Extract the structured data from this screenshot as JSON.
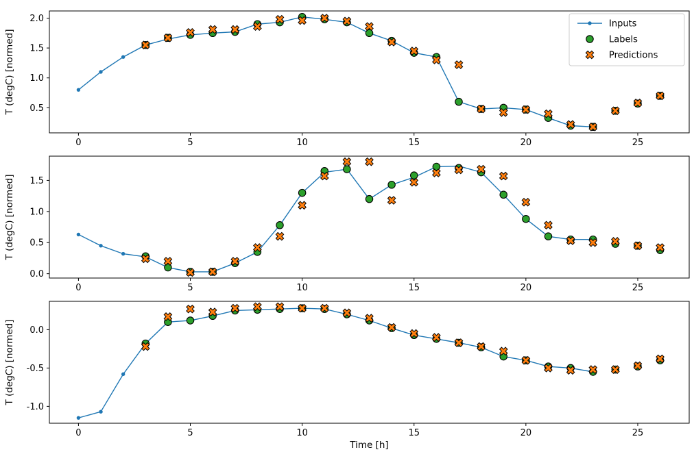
{
  "figure": {
    "xlabel": "Time [h]",
    "x_ticks": [
      0,
      5,
      10,
      15,
      20,
      25
    ],
    "x_tick_labels": [
      "0",
      "5",
      "10",
      "15",
      "20",
      "25"
    ],
    "colors": {
      "inputs": "#1f77b4",
      "labels": "#2ca02c",
      "predictions": "#ff7f0e",
      "marker_edge": "#000000",
      "frame": "#000000",
      "legend_border": "#cccccc"
    },
    "legend": {
      "position": "upper right",
      "items": [
        {
          "label": "Inputs",
          "marker": "dot-line",
          "color": "#1f77b4"
        },
        {
          "label": "Labels",
          "marker": "circle",
          "color": "#2ca02c"
        },
        {
          "label": "Predictions",
          "marker": "X",
          "color": "#ff7f0e"
        }
      ]
    }
  },
  "chart_data": [
    {
      "type": "line",
      "title": "",
      "xlabel": "",
      "ylabel": "T (degC) [normed]",
      "grid": false,
      "xlim": [
        -1.3,
        27.3
      ],
      "ylim": [
        0.08,
        2.12
      ],
      "y_ticks": [
        0.5,
        1.0,
        1.5,
        2.0
      ],
      "y_tick_labels": [
        "0.5",
        "1.0",
        "1.5",
        "2.0"
      ],
      "series": [
        {
          "name": "Inputs",
          "marker": "dot-line",
          "color": "#1f77b4",
          "x": [
            0,
            1,
            2,
            3,
            4,
            5,
            6,
            7,
            8,
            9,
            10,
            11,
            12,
            13,
            14,
            15,
            16,
            17,
            18,
            19,
            20,
            21,
            22,
            23
          ],
          "y": [
            0.8,
            1.1,
            1.35,
            1.55,
            1.65,
            1.72,
            1.75,
            1.77,
            1.9,
            1.93,
            2.02,
            1.98,
            1.93,
            1.75,
            1.62,
            1.42,
            1.35,
            0.6,
            0.48,
            0.5,
            0.47,
            0.33,
            0.2,
            0.18
          ]
        },
        {
          "name": "Labels",
          "marker": "circle",
          "color": "#2ca02c",
          "x": [
            3,
            4,
            5,
            6,
            7,
            8,
            9,
            10,
            11,
            12,
            13,
            14,
            15,
            16,
            17,
            18,
            19,
            20,
            21,
            22,
            23,
            24,
            25,
            26
          ],
          "y": [
            1.55,
            1.67,
            1.72,
            1.75,
            1.77,
            1.9,
            1.93,
            2.02,
            1.98,
            1.93,
            1.75,
            1.62,
            1.42,
            1.35,
            0.6,
            0.48,
            0.5,
            0.47,
            0.33,
            0.2,
            0.18,
            0.45,
            0.57,
            0.7
          ]
        },
        {
          "name": "Predictions",
          "marker": "X",
          "color": "#ff7f0e",
          "x": [
            3,
            4,
            5,
            6,
            7,
            8,
            9,
            10,
            11,
            12,
            13,
            14,
            15,
            16,
            17,
            18,
            19,
            20,
            21,
            22,
            23,
            24,
            25,
            26
          ],
          "y": [
            1.55,
            1.67,
            1.76,
            1.81,
            1.81,
            1.86,
            1.98,
            1.96,
            2.0,
            1.95,
            1.86,
            1.6,
            1.45,
            1.3,
            1.22,
            0.48,
            0.42,
            0.47,
            0.4,
            0.22,
            0.18,
            0.45,
            0.58,
            0.7
          ]
        }
      ]
    },
    {
      "type": "line",
      "title": "",
      "xlabel": "",
      "ylabel": "T (degC) [normed]",
      "grid": false,
      "xlim": [
        -1.3,
        27.3
      ],
      "ylim": [
        -0.07,
        1.89
      ],
      "y_ticks": [
        0.0,
        0.5,
        1.0,
        1.5
      ],
      "y_tick_labels": [
        "0.0",
        "0.5",
        "1.0",
        "1.5"
      ],
      "series": [
        {
          "name": "Inputs",
          "marker": "dot-line",
          "color": "#1f77b4",
          "x": [
            0,
            1,
            2,
            3,
            4,
            5,
            6,
            7,
            8,
            9,
            10,
            11,
            12,
            13,
            14,
            15,
            16,
            17,
            18,
            19,
            20,
            21,
            22,
            23
          ],
          "y": [
            0.63,
            0.45,
            0.32,
            0.27,
            0.1,
            0.03,
            0.03,
            0.17,
            0.35,
            0.78,
            1.3,
            1.63,
            1.68,
            1.2,
            1.43,
            1.55,
            1.72,
            1.73,
            1.63,
            1.27,
            0.88,
            0.6,
            0.55,
            0.55
          ]
        },
        {
          "name": "Labels",
          "marker": "circle",
          "color": "#2ca02c",
          "x": [
            3,
            4,
            5,
            6,
            7,
            8,
            9,
            10,
            11,
            12,
            13,
            14,
            15,
            16,
            17,
            18,
            19,
            20,
            21,
            22,
            23,
            24,
            25,
            26
          ],
          "y": [
            0.28,
            0.1,
            0.03,
            0.03,
            0.17,
            0.35,
            0.78,
            1.3,
            1.65,
            1.68,
            1.2,
            1.43,
            1.58,
            1.72,
            1.7,
            1.63,
            1.27,
            0.88,
            0.6,
            0.55,
            0.55,
            0.48,
            0.45,
            0.38
          ]
        },
        {
          "name": "Predictions",
          "marker": "X",
          "color": "#ff7f0e",
          "x": [
            3,
            4,
            5,
            6,
            7,
            8,
            9,
            10,
            11,
            12,
            13,
            14,
            15,
            16,
            17,
            18,
            19,
            20,
            21,
            22,
            23,
            24,
            25,
            26
          ],
          "y": [
            0.24,
            0.2,
            0.02,
            0.03,
            0.2,
            0.42,
            0.6,
            1.1,
            1.57,
            1.8,
            1.8,
            1.18,
            1.47,
            1.62,
            1.67,
            1.68,
            1.57,
            1.15,
            0.78,
            0.53,
            0.5,
            0.52,
            0.45,
            0.42
          ]
        }
      ]
    },
    {
      "type": "line",
      "title": "",
      "xlabel": "Time [h]",
      "ylabel": "T (degC) [normed]",
      "grid": false,
      "xlim": [
        -1.3,
        27.3
      ],
      "ylim": [
        -1.22,
        0.37
      ],
      "y_ticks": [
        -1.0,
        -0.5,
        0.0
      ],
      "y_tick_labels": [
        "-1.0",
        "-0.5",
        "0.0"
      ],
      "series": [
        {
          "name": "Inputs",
          "marker": "dot-line",
          "color": "#1f77b4",
          "x": [
            0,
            1,
            2,
            3,
            4,
            5,
            6,
            7,
            8,
            9,
            10,
            11,
            12,
            13,
            14,
            15,
            16,
            17,
            18,
            19,
            20,
            21,
            22,
            23
          ],
          "y": [
            -1.15,
            -1.07,
            -0.58,
            -0.18,
            0.1,
            0.12,
            0.18,
            0.25,
            0.26,
            0.27,
            0.28,
            0.27,
            0.2,
            0.12,
            0.02,
            -0.07,
            -0.12,
            -0.17,
            -0.23,
            -0.35,
            -0.4,
            -0.48,
            -0.5,
            -0.55
          ]
        },
        {
          "name": "Labels",
          "marker": "circle",
          "color": "#2ca02c",
          "x": [
            3,
            4,
            5,
            6,
            7,
            8,
            9,
            10,
            11,
            12,
            13,
            14,
            15,
            16,
            17,
            18,
            19,
            20,
            21,
            22,
            23,
            24,
            25,
            26
          ],
          "y": [
            -0.18,
            0.1,
            0.12,
            0.18,
            0.25,
            0.26,
            0.27,
            0.28,
            0.27,
            0.2,
            0.12,
            0.02,
            -0.07,
            -0.12,
            -0.17,
            -0.23,
            -0.35,
            -0.4,
            -0.48,
            -0.5,
            -0.55,
            -0.52,
            -0.48,
            -0.4
          ]
        },
        {
          "name": "Predictions",
          "marker": "X",
          "color": "#ff7f0e",
          "x": [
            3,
            4,
            5,
            6,
            7,
            8,
            9,
            10,
            11,
            12,
            13,
            14,
            15,
            16,
            17,
            18,
            19,
            20,
            21,
            22,
            23,
            24,
            25,
            26
          ],
          "y": [
            -0.22,
            0.17,
            0.27,
            0.23,
            0.28,
            0.3,
            0.3,
            0.28,
            0.28,
            0.22,
            0.15,
            0.03,
            -0.05,
            -0.1,
            -0.17,
            -0.22,
            -0.28,
            -0.4,
            -0.5,
            -0.53,
            -0.52,
            -0.52,
            -0.47,
            -0.38
          ]
        }
      ]
    }
  ]
}
